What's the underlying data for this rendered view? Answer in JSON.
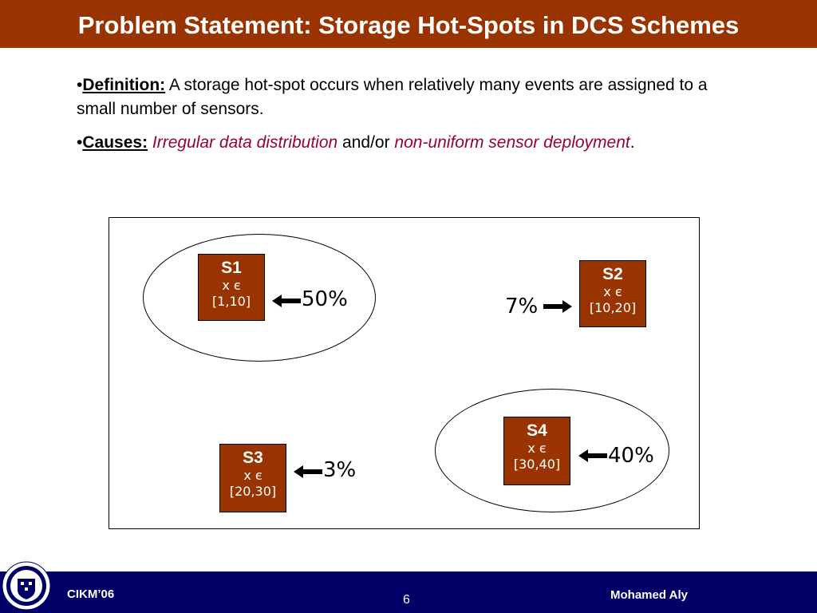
{
  "title": "Problem Statement: Storage Hot-Spots in DCS Schemes",
  "bullets": {
    "definition": {
      "marker": "•",
      "label": "Definition:",
      "text": " A storage hot-spot occurs when relatively many events are assigned to a small number of sensors."
    },
    "causes": {
      "marker": "•",
      "label": "Causes:",
      "text_1": " ",
      "italic_1": "Irregular data distribution",
      "text_2": " and/or ",
      "italic_2": "non-uniform sensor deployment",
      "text_3": "."
    }
  },
  "sensors": {
    "s1": {
      "name": "S1",
      "condition": "x є",
      "range": "[1,10]",
      "percent": "50%"
    },
    "s2": {
      "name": "S2",
      "condition": "x є",
      "range": "[10,20]",
      "percent": "7%"
    },
    "s3": {
      "name": "S3",
      "condition": "x є",
      "range": "[20,30]",
      "percent": "3%"
    },
    "s4": {
      "name": "S4",
      "condition": "x є",
      "range": "[30,40]",
      "percent": "40%"
    }
  },
  "footer": {
    "left": "CIKM’06",
    "page_number": "6",
    "author": "Mohamed Aly"
  },
  "colors": {
    "title_bar": "#993300",
    "sensor_fill": "#993300",
    "italic_red": "#990033",
    "footer_bar": "#000066"
  },
  "icons": {
    "seal": "university-seal-icon",
    "arrow": "arrow-icon"
  }
}
